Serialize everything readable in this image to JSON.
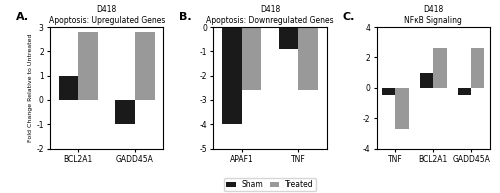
{
  "chart_data": [
    {
      "type": "bar",
      "title": "D418\nApoptosis: Upregulated Genes",
      "categories": [
        "BCL2A1",
        "GADD45A"
      ],
      "series": [
        {
          "name": "Sham",
          "color": "#1a1a1a",
          "values": [
            1.0,
            -1.0
          ]
        },
        {
          "name": "Treated",
          "color": "#999999",
          "values": [
            2.8,
            2.8
          ]
        }
      ],
      "ylabel": "Fold Change Relative to Untreated",
      "ylim": [
        -2,
        3
      ],
      "yticks": [
        -2,
        -1,
        0,
        1,
        2,
        3
      ],
      "annotations": [
        "A."
      ]
    },
    {
      "type": "bar",
      "title": "D418\nApoptosis: Downregulated Genes",
      "categories": [
        "APAF1",
        "TNF"
      ],
      "series": [
        {
          "name": "Sham",
          "color": "#1a1a1a",
          "values": [
            -4.0,
            -0.9
          ]
        },
        {
          "name": "Treated",
          "color": "#999999",
          "values": [
            -2.6,
            -2.6
          ]
        }
      ],
      "ylim": [
        -5,
        0
      ],
      "yticks": [
        -5,
        -4,
        -3,
        -2,
        -1,
        0
      ],
      "legend": "lower center",
      "annotations": [
        "B."
      ]
    },
    {
      "type": "bar",
      "title": "D418\nNFκB Signaling",
      "categories": [
        "TNF",
        "BCL2A1",
        "GADD45A"
      ],
      "series": [
        {
          "name": "Sham",
          "color": "#1a1a1a",
          "values": [
            -0.5,
            1.0,
            -0.5
          ]
        },
        {
          "name": "Treated",
          "color": "#999999",
          "values": [
            -2.7,
            2.65,
            2.65
          ]
        }
      ],
      "ylim": [
        -4,
        4
      ],
      "yticks": [
        -4,
        -2,
        0,
        2,
        4
      ],
      "annotations": [
        "C."
      ]
    }
  ]
}
